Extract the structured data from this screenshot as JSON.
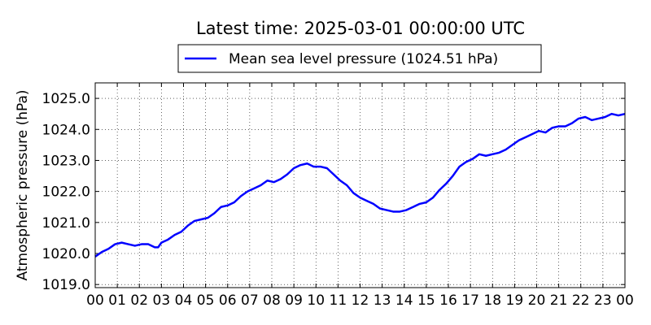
{
  "chart_data": {
    "type": "line",
    "title": "Latest time: 2025-03-01 00:00:00 UTC",
    "ylabel": "Atmospheric pressure (hPa)",
    "xlabel": "",
    "xlim": [
      0,
      24
    ],
    "ylim": [
      1018.9,
      1025.5
    ],
    "grid": true,
    "legend_position": "top-center",
    "x_tick_values": [
      0,
      1,
      2,
      3,
      4,
      5,
      6,
      7,
      8,
      9,
      10,
      11,
      12,
      13,
      14,
      15,
      16,
      17,
      18,
      19,
      20,
      21,
      22,
      23,
      24
    ],
    "x_tick_labels": [
      "00",
      "01",
      "02",
      "03",
      "04",
      "05",
      "06",
      "07",
      "08",
      "09",
      "10",
      "11",
      "12",
      "13",
      "14",
      "15",
      "16",
      "17",
      "18",
      "19",
      "20",
      "21",
      "22",
      "23",
      "00"
    ],
    "y_tick_values": [
      1019.0,
      1020.0,
      1021.0,
      1022.0,
      1023.0,
      1024.0,
      1025.0
    ],
    "y_tick_labels": [
      "1019.0",
      "1020.0",
      "1021.0",
      "1022.0",
      "1023.0",
      "1024.0",
      "1025.0"
    ],
    "series": [
      {
        "name": "Mean sea level pressure (1024.51 hPa)",
        "color": "#0000ff",
        "x": [
          0,
          0.3,
          0.6,
          0.9,
          1.2,
          1.5,
          1.8,
          2.1,
          2.4,
          2.7,
          2.85,
          3.0,
          3.3,
          3.6,
          3.9,
          4.2,
          4.5,
          4.8,
          5.1,
          5.4,
          5.7,
          6.0,
          6.3,
          6.6,
          6.9,
          7.2,
          7.5,
          7.8,
          8.1,
          8.4,
          8.7,
          9.0,
          9.3,
          9.6,
          9.9,
          10.2,
          10.5,
          10.8,
          11.1,
          11.4,
          11.7,
          12.0,
          12.3,
          12.6,
          12.9,
          13.2,
          13.5,
          13.8,
          14.1,
          14.4,
          14.7,
          15.0,
          15.3,
          15.6,
          15.9,
          16.2,
          16.5,
          16.8,
          17.1,
          17.4,
          17.7,
          18.0,
          18.3,
          18.6,
          18.9,
          19.2,
          19.5,
          19.8,
          20.1,
          20.4,
          20.7,
          21.0,
          21.3,
          21.6,
          21.9,
          22.2,
          22.5,
          22.8,
          23.1,
          23.4,
          23.7,
          24.0
        ],
        "y": [
          1019.9,
          1020.05,
          1020.15,
          1020.3,
          1020.35,
          1020.3,
          1020.25,
          1020.3,
          1020.3,
          1020.2,
          1020.2,
          1020.35,
          1020.45,
          1020.6,
          1020.7,
          1020.9,
          1021.05,
          1021.1,
          1021.15,
          1021.3,
          1021.5,
          1021.55,
          1021.65,
          1021.85,
          1022.0,
          1022.1,
          1022.2,
          1022.35,
          1022.3,
          1022.4,
          1022.55,
          1022.75,
          1022.85,
          1022.9,
          1022.8,
          1022.8,
          1022.75,
          1022.55,
          1022.35,
          1022.2,
          1021.95,
          1021.8,
          1021.7,
          1021.6,
          1021.45,
          1021.4,
          1021.35,
          1021.35,
          1021.4,
          1021.5,
          1021.6,
          1021.65,
          1021.8,
          1022.05,
          1022.25,
          1022.5,
          1022.8,
          1022.95,
          1023.05,
          1023.2,
          1023.15,
          1023.2,
          1023.25,
          1023.35,
          1023.5,
          1023.65,
          1023.75,
          1023.85,
          1023.95,
          1023.9,
          1024.05,
          1024.1,
          1024.1,
          1024.2,
          1024.35,
          1024.4,
          1024.3,
          1024.35,
          1024.4,
          1024.5,
          1024.45,
          1024.5
        ]
      }
    ]
  }
}
